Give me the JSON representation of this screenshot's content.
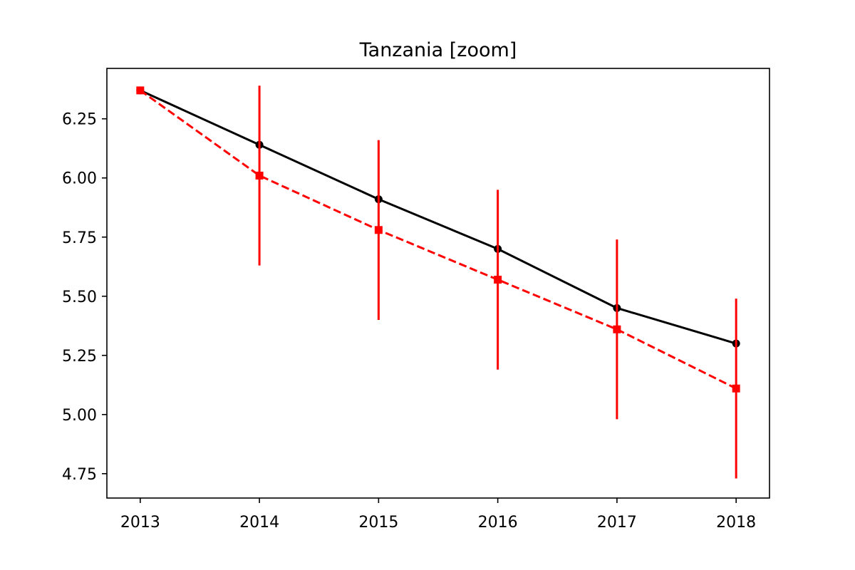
{
  "chart_data": {
    "type": "line",
    "title": "Tanzania [zoom]",
    "xlabel": "",
    "ylabel": "",
    "x": [
      2013,
      2014,
      2015,
      2016,
      2017,
      2018
    ],
    "xlim": [
      2012.72,
      2018.28
    ],
    "ylim": [
      4.647,
      6.463
    ],
    "xticks": [
      2013,
      2014,
      2015,
      2016,
      2017,
      2018
    ],
    "yticks": [
      4.75,
      5.0,
      5.25,
      5.5,
      5.75,
      6.0,
      6.25
    ],
    "ytick_labels": [
      "4.75",
      "5.00",
      "5.25",
      "5.50",
      "5.75",
      "6.00",
      "6.25"
    ],
    "grid": false,
    "legend": "none",
    "series": [
      {
        "color": "#000000",
        "style": "solid",
        "marker": "circle",
        "values": [
          6.37,
          6.14,
          5.91,
          5.7,
          5.45,
          5.3
        ]
      },
      {
        "color": "#ff0000",
        "style": "dashed",
        "marker": "square",
        "values": [
          6.37,
          6.01,
          5.78,
          5.57,
          5.36,
          5.11
        ],
        "error_low": [
          null,
          5.63,
          5.4,
          5.19,
          4.98,
          4.73
        ],
        "error_high": [
          null,
          6.39,
          6.16,
          5.95,
          5.74,
          5.49
        ]
      }
    ]
  }
}
